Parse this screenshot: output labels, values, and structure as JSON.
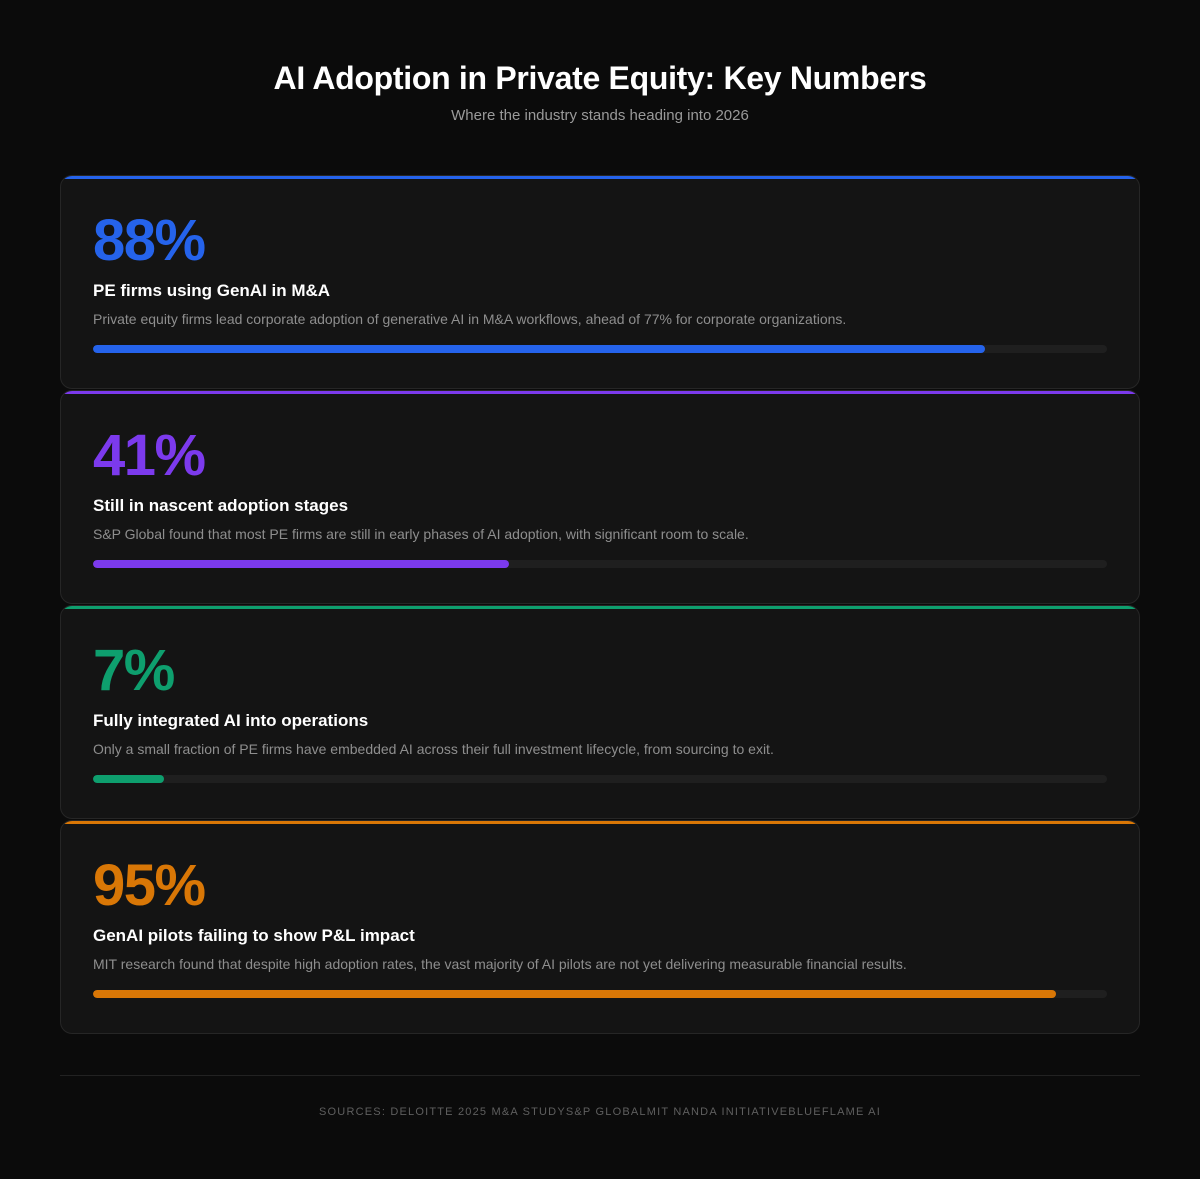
{
  "header": {
    "title": "AI Adoption in Private Equity: Key Numbers",
    "subtitle": "Where the industry stands heading into 2026"
  },
  "stats": [
    {
      "value_label": "88%",
      "value": 88,
      "title": "PE firms using GenAI in M&A",
      "description": "Private equity firms lead corporate adoption of generative AI in M&A workflows, ahead of 77% for corporate organizations.",
      "color": "#2563eb"
    },
    {
      "value_label": "41%",
      "value": 41,
      "title": "Still in nascent adoption stages",
      "description": "S&P Global found that most PE firms are still in early phases of AI adoption, with significant room to scale.",
      "color": "#7c3aed"
    },
    {
      "value_label": "7%",
      "value": 7,
      "title": "Fully integrated AI into operations",
      "description": "Only a small fraction of PE firms have embedded AI across their full investment lifecycle, from sourcing to exit.",
      "color": "#0e9f6e"
    },
    {
      "value_label": "95%",
      "value": 95,
      "title": "GenAI pilots failing to show P&L impact",
      "description": "MIT research found that despite high adoption rates, the vast majority of AI pilots are not yet delivering measurable financial results.",
      "color": "#d97706"
    }
  ],
  "footer": {
    "sources": "Sources: Deloitte 2025 M&A StudyS&P GlobalMIT NANDA InitiativeBlueFlame AI"
  }
}
